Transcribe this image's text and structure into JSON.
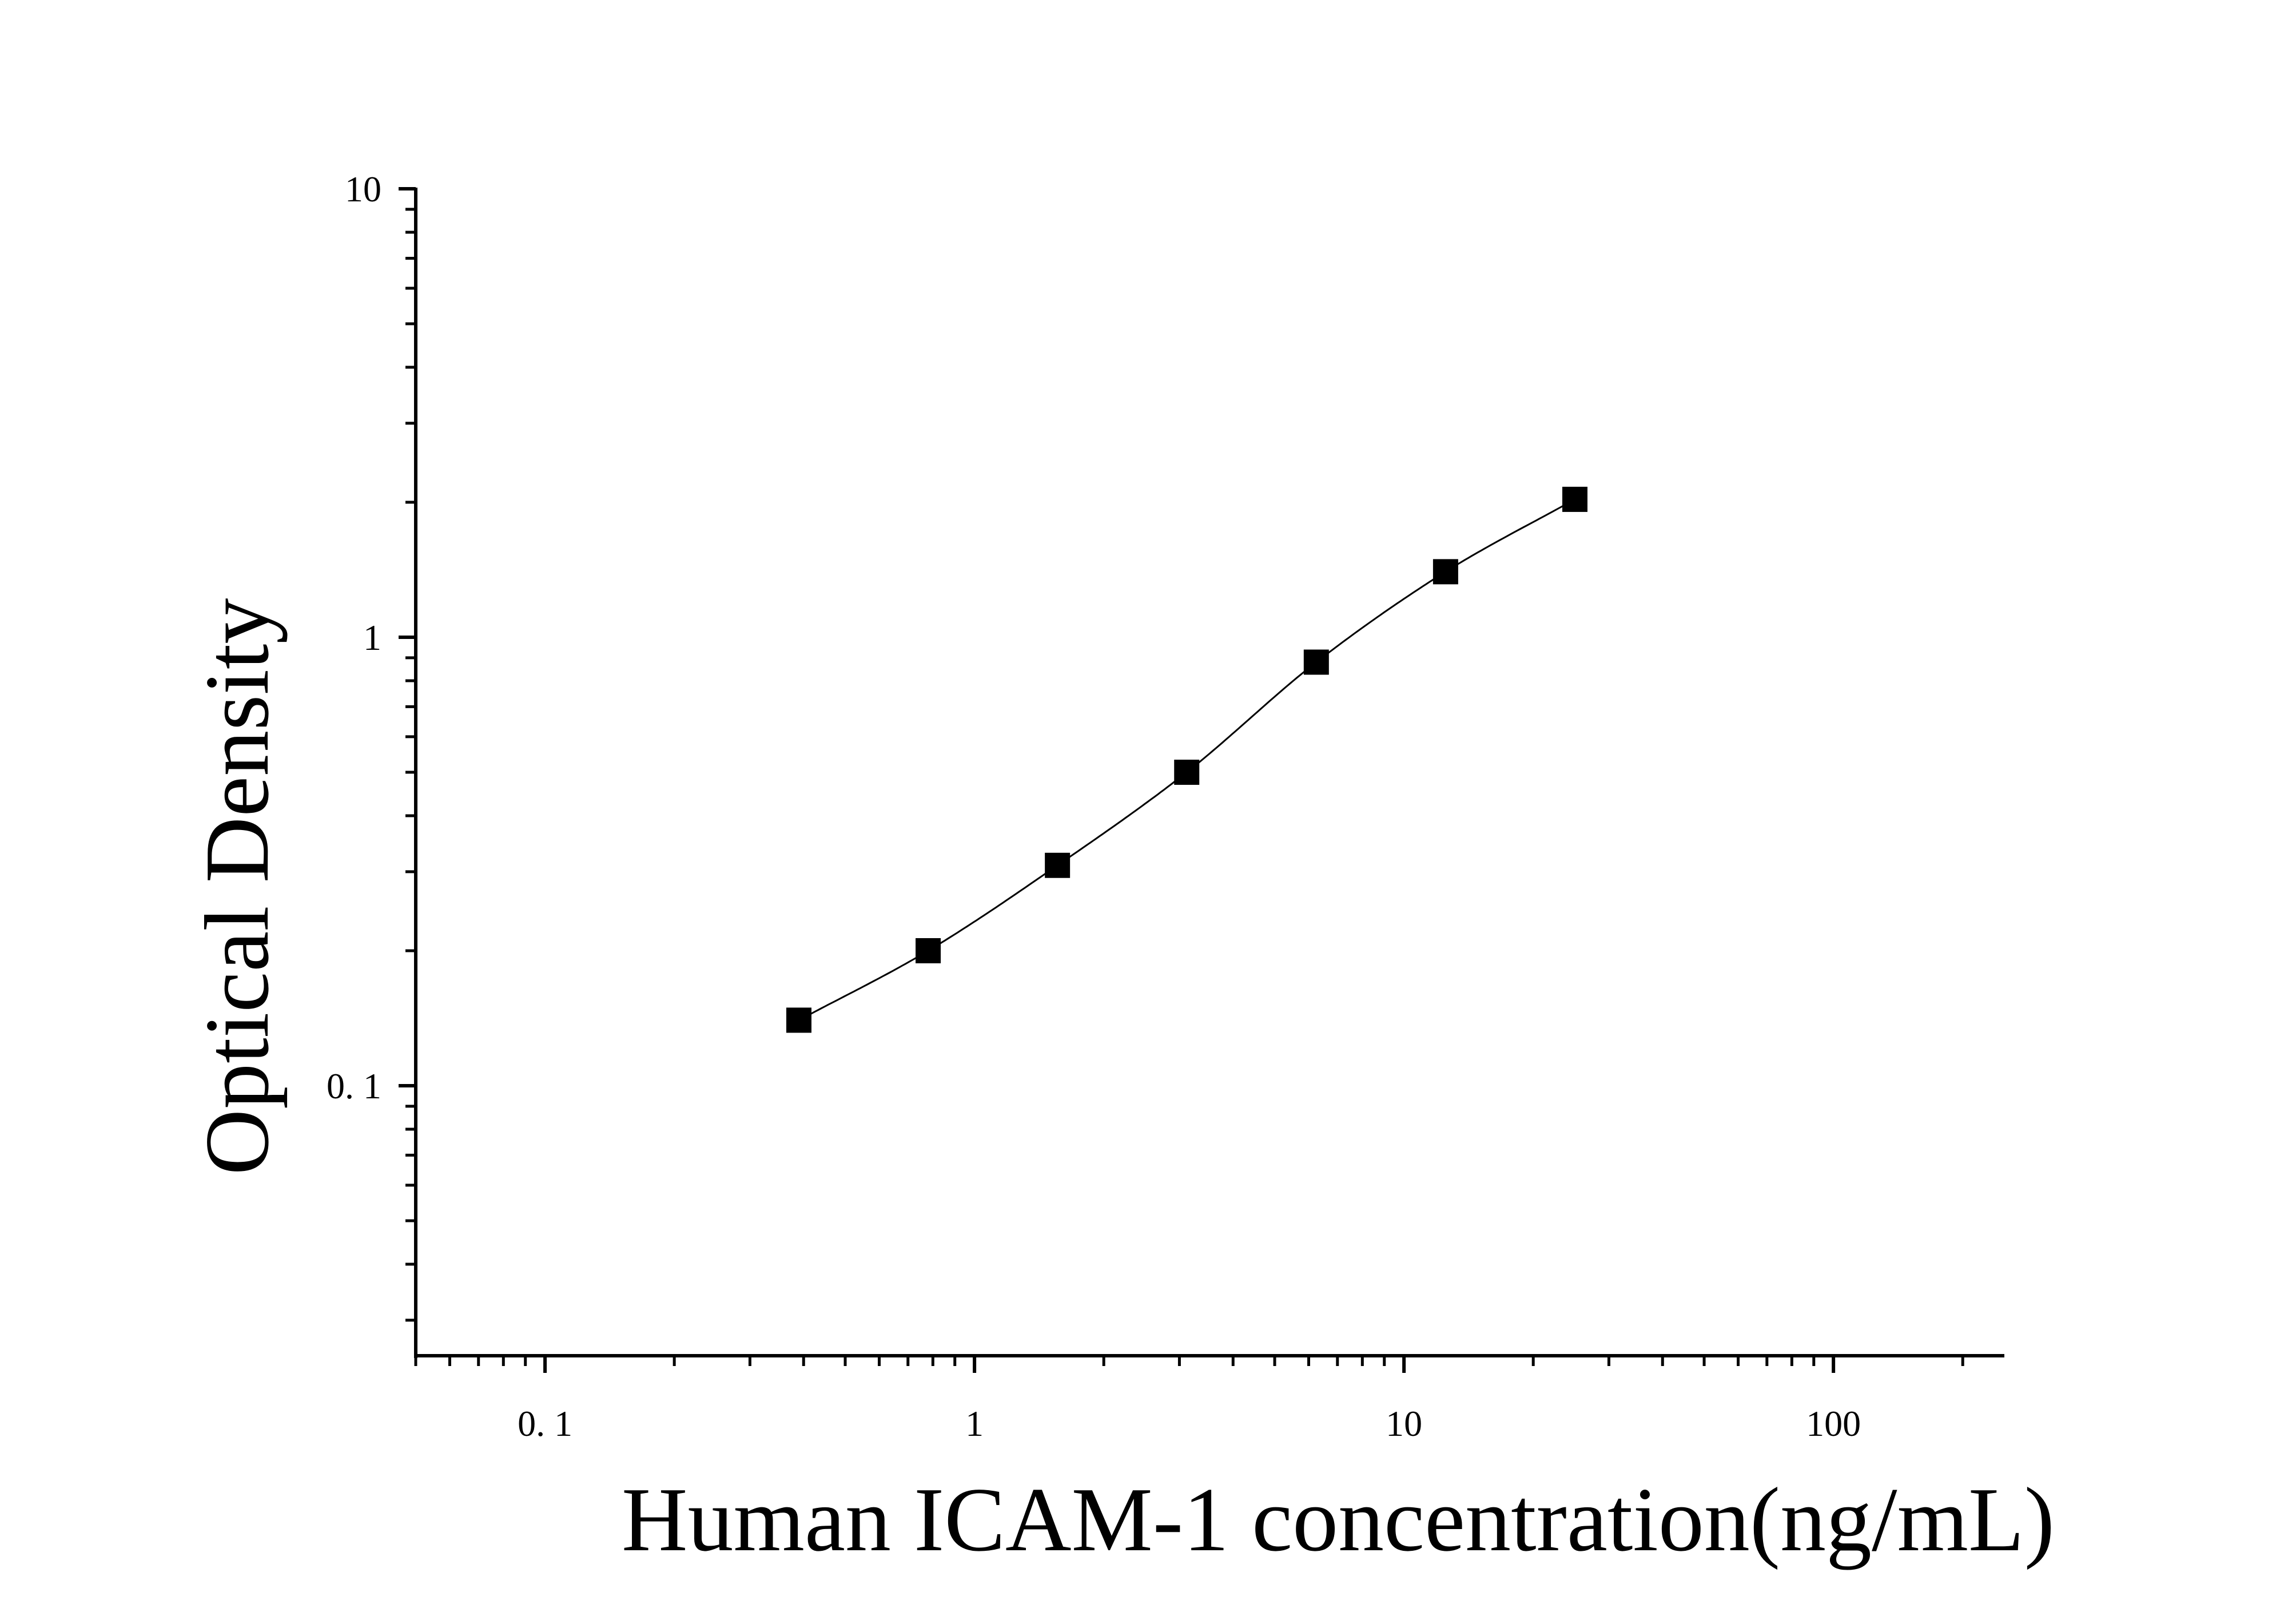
{
  "chart_data": {
    "type": "scatter",
    "title": "",
    "xlabel": "Human ICAM-1 concentration(ng/mL)",
    "ylabel": "Optical Density",
    "x_scale": "log",
    "y_scale": "log",
    "xlim": [
      0.05,
      250
    ],
    "ylim": [
      0.025,
      10
    ],
    "x_ticks": [
      {
        "value": 0.1,
        "label": "0. 1"
      },
      {
        "value": 1,
        "label": "1"
      },
      {
        "value": 10,
        "label": "10"
      },
      {
        "value": 100,
        "label": "100"
      }
    ],
    "y_ticks": [
      {
        "value": 0.1,
        "label": "0. 1"
      },
      {
        "value": 1,
        "label": "1"
      },
      {
        "value": 10,
        "label": "10"
      }
    ],
    "grid": false,
    "legend": false,
    "colors": {
      "marker": "#000000",
      "curve": "#000000",
      "axis": "#000000"
    },
    "series": [
      {
        "x": [
          0.39,
          0.78,
          1.56,
          3.12,
          6.25,
          12.5,
          25
        ],
        "y": [
          0.14,
          0.2,
          0.31,
          0.5,
          0.88,
          1.4,
          2.03
        ],
        "marker": "square",
        "fit_curve": true
      }
    ]
  }
}
